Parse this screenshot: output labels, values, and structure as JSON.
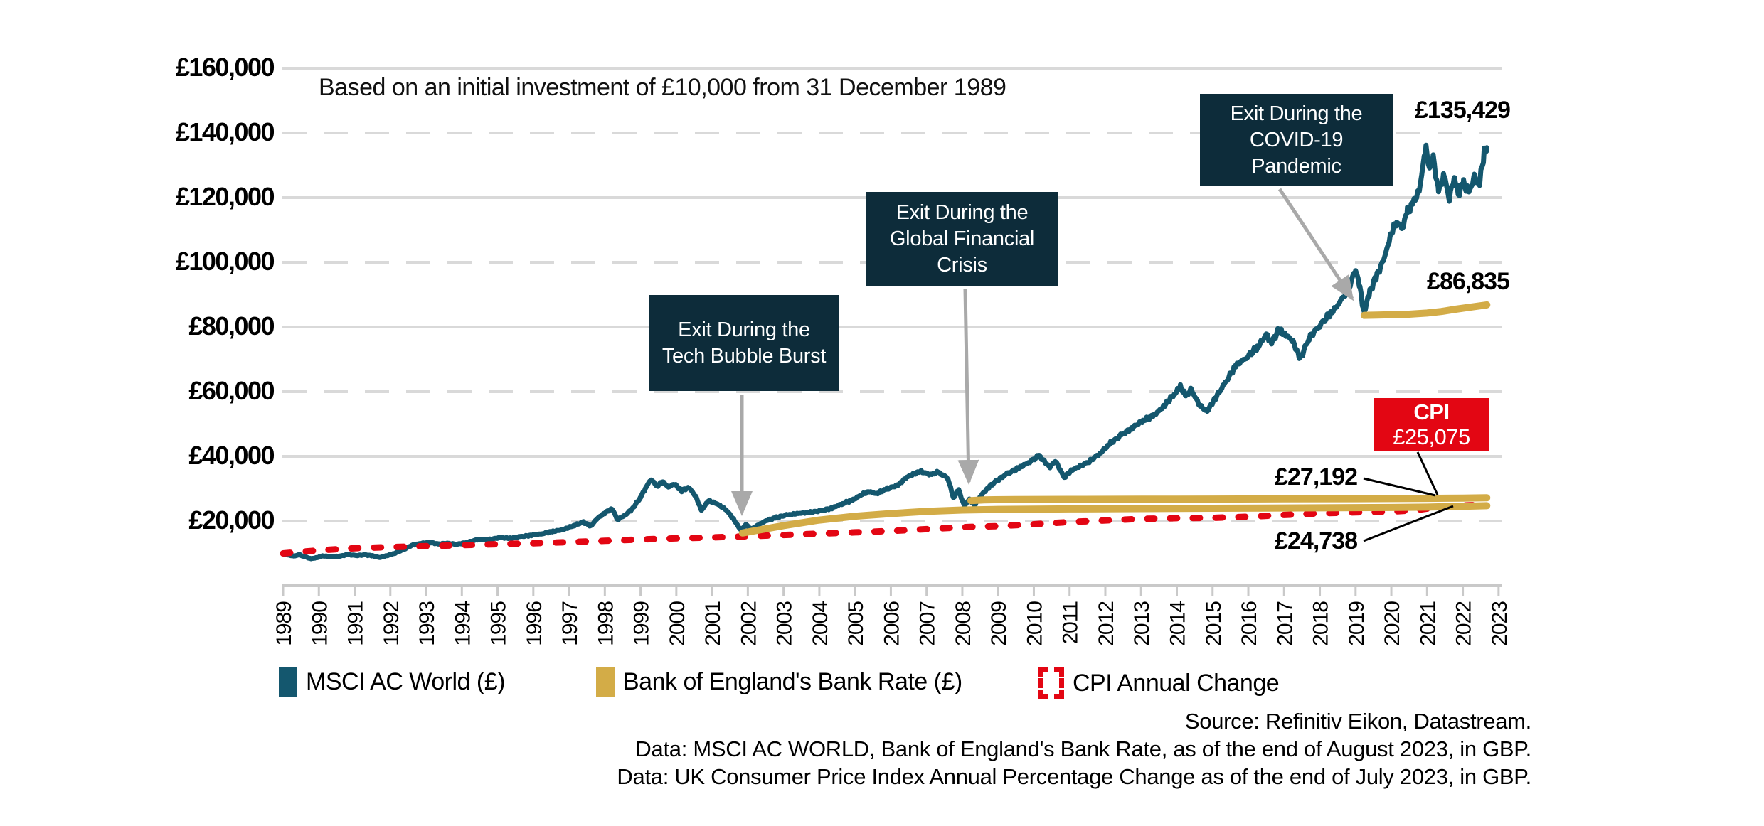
{
  "colors": {
    "msci": "#14576e",
    "gold": "#d3ac47",
    "red": "#e30613",
    "box_bg": "#0d2c3a",
    "arrow": "#a9a9a9",
    "grid": "#d9d9d9",
    "axis": "#c9c9c9",
    "leader": "#000000"
  },
  "subtitle": "Based on an initial investment of £10,000 from 31 December 1989",
  "y_axis": {
    "tick_labels": [
      "£160,000",
      "£140,000",
      "£120,000",
      "£100,000",
      "£80,000",
      "£60,000",
      "£40,000",
      "£20,000"
    ],
    "tick_values": [
      160000,
      140000,
      120000,
      100000,
      80000,
      60000,
      40000,
      20000
    ],
    "solid_values": [
      160000,
      120000,
      80000,
      40000
    ]
  },
  "x_axis": {
    "years": [
      1989,
      1990,
      1991,
      1992,
      1993,
      1994,
      1995,
      1996,
      1997,
      1998,
      1999,
      2000,
      2001,
      2002,
      2003,
      2004,
      2005,
      2006,
      2007,
      2008,
      2009,
      2010,
      2011,
      2012,
      2013,
      2014,
      2015,
      2016,
      2017,
      2018,
      2019,
      2020,
      2021,
      2022,
      2023
    ]
  },
  "annotations": {
    "tech": {
      "text": "Exit During the\nTech Bubble Burst"
    },
    "gfc": {
      "text": "Exit During the\nGlobal Financial\nCrisis"
    },
    "covid": {
      "text": "Exit During the\nCOVID-19\nPandemic"
    }
  },
  "value_labels": {
    "msci_end": "£135,429",
    "covid_exit_end": "£86,835",
    "gfc_exit_end": "£27,192",
    "tech_exit_end": "£24,738",
    "cpi_title": "CPI",
    "cpi_value": "£25,075"
  },
  "legend": [
    {
      "label": "MSCI AC World (£)",
      "swatch": "msci-solid"
    },
    {
      "label": "Bank of England's Bank Rate (£)",
      "swatch": "gold-solid"
    },
    {
      "label": "CPI Annual Change",
      "swatch": "red-dashed"
    }
  ],
  "source_lines": [
    "Source: Refinitiv Eikon, Datastream.",
    "Data: MSCI AC WORLD,  Bank of England's Bank Rate, as of the end of August 2023, in GBP.",
    "Data: UK Consumer Price Index Annual Percentage Change as of the end of July 2023, in GBP."
  ],
  "chart_data": {
    "type": "line",
    "title": "",
    "subtitle": "Based on an initial investment of £10,000 from 31 December 1989",
    "x_unit": "years since 31 December 1989 (axis ticks mark year-end 1989 to 2023, data to end of August 2023)",
    "x_tick_years": [
      1989,
      1990,
      1991,
      1992,
      1993,
      1994,
      1995,
      1996,
      1997,
      1998,
      1999,
      2000,
      2001,
      2002,
      2003,
      2004,
      2005,
      2006,
      2007,
      2008,
      2009,
      2010,
      2011,
      2012,
      2013,
      2014,
      2015,
      2016,
      2017,
      2018,
      2019,
      2020,
      2021,
      2022,
      2023
    ],
    "ylim": [
      0,
      160000
    ],
    "grid": "horizontal, alternating solid and dashed",
    "legend_position": "bottom",
    "end_values": {
      "msci": 135429,
      "covid_exit": 86835,
      "gfc_exit": 27192,
      "tech_exit": 24738,
      "cpi": 25075
    },
    "series": [
      {
        "name": "MSCI AC World (£)",
        "color_key": "msci",
        "style": "solid",
        "width": 7,
        "noise": true,
        "points": [
          [
            0,
            10000
          ],
          [
            0.15,
            9500
          ],
          [
            0.3,
            9150
          ],
          [
            0.45,
            9600
          ],
          [
            0.6,
            9000
          ],
          [
            0.78,
            8350
          ],
          [
            0.95,
            8700
          ],
          [
            1.1,
            9250
          ],
          [
            1.35,
            8950
          ],
          [
            1.6,
            9150
          ],
          [
            1.8,
            9650
          ],
          [
            2.05,
            9350
          ],
          [
            2.3,
            9550
          ],
          [
            2.5,
            9250
          ],
          [
            2.7,
            8700
          ],
          [
            2.9,
            9300
          ],
          [
            3.1,
            9950
          ],
          [
            3.35,
            11100
          ],
          [
            3.6,
            12500
          ],
          [
            3.85,
            13100
          ],
          [
            4.1,
            13400
          ],
          [
            4.35,
            12900
          ],
          [
            4.6,
            13100
          ],
          [
            4.85,
            12800
          ],
          [
            5.15,
            13400
          ],
          [
            5.45,
            14300
          ],
          [
            5.75,
            14200
          ],
          [
            6.05,
            14900
          ],
          [
            6.35,
            14700
          ],
          [
            6.65,
            15200
          ],
          [
            6.95,
            15600
          ],
          [
            7.25,
            16100
          ],
          [
            7.55,
            16800
          ],
          [
            7.85,
            17400
          ],
          [
            8.15,
            18700
          ],
          [
            8.4,
            19700
          ],
          [
            8.6,
            18400
          ],
          [
            8.8,
            20900
          ],
          [
            9.0,
            22500
          ],
          [
            9.2,
            23900
          ],
          [
            9.35,
            20500
          ],
          [
            9.55,
            21700
          ],
          [
            9.75,
            23500
          ],
          [
            10.0,
            27300
          ],
          [
            10.15,
            30500
          ],
          [
            10.3,
            32900
          ],
          [
            10.45,
            30800
          ],
          [
            10.62,
            32100
          ],
          [
            10.78,
            30600
          ],
          [
            10.95,
            31400
          ],
          [
            11.15,
            29400
          ],
          [
            11.35,
            30400
          ],
          [
            11.55,
            27500
          ],
          [
            11.7,
            23300
          ],
          [
            11.9,
            26300
          ],
          [
            12.15,
            25300
          ],
          [
            12.4,
            23400
          ],
          [
            12.6,
            20600
          ],
          [
            12.8,
            17200
          ],
          [
            12.95,
            18900
          ],
          [
            13.1,
            17400
          ],
          [
            13.3,
            18800
          ],
          [
            13.5,
            20100
          ],
          [
            13.8,
            21100
          ],
          [
            14.1,
            21900
          ],
          [
            14.45,
            22400
          ],
          [
            14.75,
            22700
          ],
          [
            15.05,
            23200
          ],
          [
            15.35,
            24000
          ],
          [
            15.65,
            25400
          ],
          [
            15.95,
            26600
          ],
          [
            16.2,
            28300
          ],
          [
            16.4,
            29100
          ],
          [
            16.6,
            28500
          ],
          [
            16.9,
            30000
          ],
          [
            17.2,
            31100
          ],
          [
            17.45,
            33600
          ],
          [
            17.65,
            34700
          ],
          [
            17.85,
            35400
          ],
          [
            18.0,
            34600
          ],
          [
            18.15,
            34400
          ],
          [
            18.3,
            35100
          ],
          [
            18.45,
            34400
          ],
          [
            18.6,
            33100
          ],
          [
            18.75,
            27200
          ],
          [
            18.9,
            29600
          ],
          [
            19.05,
            24700
          ],
          [
            19.2,
            26700
          ],
          [
            19.35,
            24900
          ],
          [
            19.5,
            27600
          ],
          [
            19.7,
            30100
          ],
          [
            19.95,
            32400
          ],
          [
            20.25,
            34600
          ],
          [
            20.55,
            36200
          ],
          [
            20.85,
            38100
          ],
          [
            21.15,
            40200
          ],
          [
            21.45,
            36600
          ],
          [
            21.6,
            38700
          ],
          [
            21.85,
            33500
          ],
          [
            22.05,
            35700
          ],
          [
            22.3,
            37000
          ],
          [
            22.55,
            38400
          ],
          [
            22.85,
            40900
          ],
          [
            23.15,
            44100
          ],
          [
            23.45,
            46600
          ],
          [
            23.75,
            48800
          ],
          [
            24.05,
            51100
          ],
          [
            24.35,
            52600
          ],
          [
            24.65,
            55600
          ],
          [
            24.95,
            59600
          ],
          [
            25.1,
            61600
          ],
          [
            25.25,
            58600
          ],
          [
            25.4,
            60600
          ],
          [
            25.65,
            55600
          ],
          [
            25.85,
            53900
          ],
          [
            26.05,
            57600
          ],
          [
            26.35,
            62600
          ],
          [
            26.65,
            68100
          ],
          [
            26.95,
            70600
          ],
          [
            27.25,
            73600
          ],
          [
            27.5,
            77600
          ],
          [
            27.65,
            75100
          ],
          [
            27.85,
            79100
          ],
          [
            28.05,
            77600
          ],
          [
            28.25,
            75600
          ],
          [
            28.45,
            70100
          ],
          [
            28.7,
            76600
          ],
          [
            29.0,
            80600
          ],
          [
            29.3,
            84100
          ],
          [
            29.6,
            88100
          ],
          [
            29.85,
            93100
          ],
          [
            30.0,
            98100
          ],
          [
            30.12,
            92000
          ],
          [
            30.24,
            84600
          ],
          [
            30.4,
            91000
          ],
          [
            30.6,
            96100
          ],
          [
            30.8,
            101100
          ],
          [
            31.0,
            109100
          ],
          [
            31.15,
            112600
          ],
          [
            31.3,
            110600
          ],
          [
            31.45,
            115600
          ],
          [
            31.6,
            118100
          ],
          [
            31.78,
            122100
          ],
          [
            31.97,
            135900
          ],
          [
            32.07,
            128600
          ],
          [
            32.17,
            132600
          ],
          [
            32.32,
            121600
          ],
          [
            32.47,
            127100
          ],
          [
            32.62,
            119900
          ],
          [
            32.77,
            126600
          ],
          [
            32.87,
            121100
          ],
          [
            33.02,
            124600
          ],
          [
            33.17,
            121600
          ],
          [
            33.32,
            126100
          ],
          [
            33.47,
            124600
          ],
          [
            33.6,
            133900
          ],
          [
            33.67,
            135429
          ]
        ]
      },
      {
        "name": "CPI Annual Change",
        "color_key": "red",
        "style": "dashed",
        "width": 9,
        "noise": false,
        "points": [
          [
            0,
            10000
          ],
          [
            1,
            10950
          ],
          [
            2,
            11600
          ],
          [
            3,
            11950
          ],
          [
            4,
            12250
          ],
          [
            5,
            12550
          ],
          [
            6,
            12850
          ],
          [
            7,
            13150
          ],
          [
            8,
            13500
          ],
          [
            9,
            13900
          ],
          [
            10,
            14300
          ],
          [
            11,
            14650
          ],
          [
            12,
            14950
          ],
          [
            13,
            15300
          ],
          [
            14,
            15700
          ],
          [
            15,
            16100
          ],
          [
            16,
            16500
          ],
          [
            17,
            16950
          ],
          [
            18,
            17500
          ],
          [
            19,
            18100
          ],
          [
            20,
            18450
          ],
          [
            21,
            19000
          ],
          [
            22,
            19700
          ],
          [
            23,
            20200
          ],
          [
            24,
            20650
          ],
          [
            25,
            20900
          ],
          [
            26,
            21000
          ],
          [
            27,
            21350
          ],
          [
            28,
            21900
          ],
          [
            29,
            22400
          ],
          [
            30,
            22700
          ],
          [
            31,
            22900
          ],
          [
            31.7,
            23400
          ],
          [
            32.3,
            24300
          ],
          [
            33,
            24800
          ],
          [
            33.67,
            25075
          ]
        ]
      },
      {
        "name": "Bank of England's Bank Rate after Tech Bubble exit (£)",
        "color_key": "gold",
        "style": "solid",
        "width": 10,
        "noise": false,
        "points": [
          [
            12.85,
            16300
          ],
          [
            13.3,
            17200
          ],
          [
            14,
            18600
          ],
          [
            15,
            20300
          ],
          [
            16,
            21500
          ],
          [
            17,
            22300
          ],
          [
            18,
            23000
          ],
          [
            19,
            23400
          ],
          [
            20,
            23600
          ],
          [
            21,
            23700
          ],
          [
            22,
            23750
          ],
          [
            24,
            23850
          ],
          [
            26,
            23950
          ],
          [
            28,
            24050
          ],
          [
            30,
            24150
          ],
          [
            31,
            24200
          ],
          [
            32,
            24300
          ],
          [
            32.8,
            24500
          ],
          [
            33.67,
            24738
          ]
        ]
      },
      {
        "name": "Bank of England's Bank Rate after Global Financial Crisis exit (£)",
        "color_key": "gold",
        "style": "solid",
        "width": 10,
        "noise": false,
        "points": [
          [
            19.24,
            26300
          ],
          [
            19.6,
            26550
          ],
          [
            20.5,
            26650
          ],
          [
            22,
            26700
          ],
          [
            24,
            26750
          ],
          [
            26,
            26800
          ],
          [
            28,
            26850
          ],
          [
            30,
            26900
          ],
          [
            31,
            26950
          ],
          [
            32,
            27000
          ],
          [
            33,
            27100
          ],
          [
            33.67,
            27192
          ]
        ]
      },
      {
        "name": "Bank of England's Bank Rate after COVID-19 exit (£)",
        "color_key": "gold",
        "style": "solid",
        "width": 10,
        "noise": false,
        "points": [
          [
            30.24,
            83600
          ],
          [
            30.6,
            83700
          ],
          [
            31.0,
            83800
          ],
          [
            31.5,
            83950
          ],
          [
            32.0,
            84300
          ],
          [
            32.4,
            84800
          ],
          [
            32.8,
            85500
          ],
          [
            33.2,
            86100
          ],
          [
            33.67,
            86835
          ]
        ]
      }
    ]
  }
}
